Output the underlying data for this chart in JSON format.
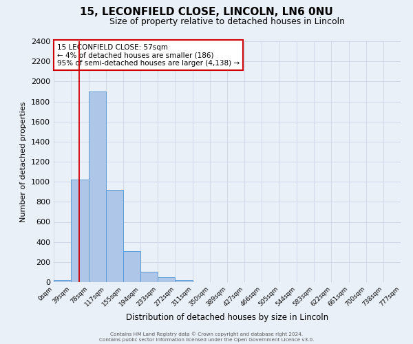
{
  "title": "15, LECONFIELD CLOSE, LINCOLN, LN6 0NU",
  "subtitle": "Size of property relative to detached houses in Lincoln",
  "xlabel": "Distribution of detached houses by size in Lincoln",
  "ylabel": "Number of detached properties",
  "bin_edges": [
    0,
    39,
    78,
    117,
    155,
    194,
    233,
    272,
    311,
    350,
    389,
    427,
    466,
    505,
    544,
    583,
    622,
    661,
    700,
    738,
    777
  ],
  "bin_labels": [
    "0sqm",
    "39sqm",
    "78sqm",
    "117sqm",
    "155sqm",
    "194sqm",
    "233sqm",
    "272sqm",
    "311sqm",
    "350sqm",
    "389sqm",
    "427sqm",
    "466sqm",
    "505sqm",
    "544sqm",
    "583sqm",
    "622sqm",
    "661sqm",
    "700sqm",
    "738sqm",
    "777sqm"
  ],
  "bar_heights": [
    20,
    1020,
    1900,
    920,
    310,
    105,
    50,
    20,
    0,
    0,
    0,
    0,
    0,
    0,
    0,
    0,
    0,
    0,
    0,
    0
  ],
  "bar_color": "#aec6e8",
  "bar_edge_color": "#5b9bd5",
  "red_line_x": 57,
  "ylim": [
    0,
    2400
  ],
  "yticks": [
    0,
    200,
    400,
    600,
    800,
    1000,
    1200,
    1400,
    1600,
    1800,
    2000,
    2200,
    2400
  ],
  "annotation_box_text": [
    "15 LECONFIELD CLOSE: 57sqm",
    "← 4% of detached houses are smaller (186)",
    "95% of semi-detached houses are larger (4,138) →"
  ],
  "annotation_box_color": "#ffffff",
  "annotation_box_edge_color": "#cc0000",
  "grid_color": "#d0d8e8",
  "background_color": "#eaf0f8",
  "footer_line1": "Contains HM Land Registry data © Crown copyright and database right 2024.",
  "footer_line2": "Contains public sector information licensed under the Open Government Licence v3.0."
}
